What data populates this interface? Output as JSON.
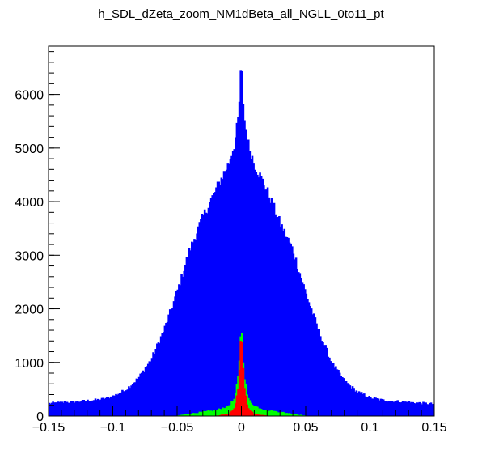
{
  "title": "h_SDL_dZeta_zoom_NM1dBeta_all_NGLL_0to11_pt",
  "chart_data": {
    "type": "histogram",
    "title": "h_SDL_dZeta_zoom_NM1dBeta_all_NGLL_0to11_pt",
    "xlabel": "",
    "ylabel": "",
    "xlim": [
      -0.15,
      0.15
    ],
    "ylim": [
      0,
      6900
    ],
    "x_ticks": [
      -0.15,
      -0.1,
      -0.05,
      0,
      0.05,
      0.1,
      0.15
    ],
    "x_tick_labels": [
      "−0.15",
      "−0.1",
      "−0.05",
      "0",
      "0.05",
      "0.1",
      "0.15"
    ],
    "y_ticks": [
      0,
      1000,
      2000,
      3000,
      4000,
      5000,
      6000
    ],
    "y_tick_labels": [
      "0",
      "1000",
      "2000",
      "3000",
      "4000",
      "5000",
      "6000"
    ],
    "grid": false,
    "legend": "none",
    "series": [
      {
        "color": "#0000ff",
        "shape": "curve",
        "x": [
          -0.15,
          -0.13,
          -0.11,
          -0.1,
          -0.09,
          -0.08,
          -0.07,
          -0.06,
          -0.05,
          -0.04,
          -0.03,
          -0.02,
          -0.01,
          -0.005,
          -0.002,
          0,
          0.002,
          0.005,
          0.01,
          0.02,
          0.03,
          0.04,
          0.05,
          0.06,
          0.07,
          0.08,
          0.09,
          0.1,
          0.11,
          0.13,
          0.15
        ],
        "y": [
          230,
          260,
          300,
          360,
          480,
          700,
          1050,
          1600,
          2300,
          3100,
          3700,
          4200,
          4700,
          5100,
          5600,
          6600,
          5600,
          5100,
          4700,
          4200,
          3600,
          3100,
          2300,
          1600,
          1000,
          650,
          450,
          340,
          290,
          250,
          220
        ]
      },
      {
        "color": "#00ff00",
        "shape": "curve",
        "x": [
          -0.15,
          -0.05,
          -0.03,
          -0.02,
          -0.01,
          -0.005,
          -0.002,
          0,
          0.002,
          0.005,
          0.01,
          0.02,
          0.03,
          0.05,
          0.15
        ],
        "y": [
          0,
          0,
          70,
          100,
          180,
          320,
          800,
          1750,
          800,
          320,
          180,
          100,
          70,
          0,
          0
        ]
      },
      {
        "color": "#ff0000",
        "shape": "curve",
        "x": [
          -0.15,
          -0.02,
          -0.01,
          -0.005,
          -0.002,
          0,
          0.002,
          0.005,
          0.01,
          0.02,
          0.15
        ],
        "y": [
          0,
          0,
          30,
          150,
          600,
          1600,
          600,
          150,
          30,
          0,
          0
        ]
      }
    ]
  }
}
